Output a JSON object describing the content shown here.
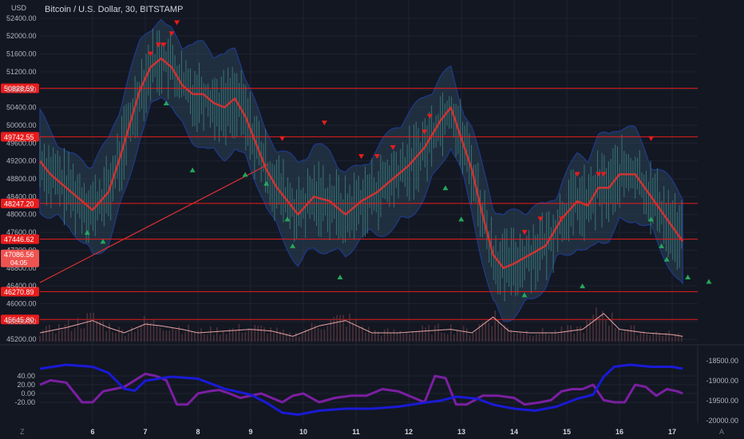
{
  "header": {
    "title": "Bitcoin / U.S. Dollar, 30, BITSTAMP",
    "unit": "USD"
  },
  "corner": {
    "left": "Z",
    "right": "A"
  },
  "colors": {
    "background": "#131722",
    "grid": "#1f2330",
    "candle_wick": "#3d8b86",
    "band_fill": "#2b4457",
    "band_edge": "#1e3a8c",
    "moving_average": "#cc3333",
    "level_line": "#e81c1c",
    "trend_line": "#e03131",
    "volume_line": "#e8a3a3",
    "buy_marker": "#26a65b",
    "sell_marker": "#e81c1c",
    "oscillator_purple": "#7b1fa2",
    "oscillator_blue": "#1a1ad6",
    "current_price_label": "#ef5350"
  },
  "chart_data": {
    "type": "line",
    "price_axis": {
      "ticks": [
        "52400.00",
        "52000.00",
        "51600.00",
        "51200.00",
        "50800.00",
        "50400.00",
        "50000.00",
        "49600.00",
        "49200.00",
        "48800.00",
        "48400.00",
        "48000.00",
        "47600.00",
        "47200.00",
        "46800.00",
        "46400.00",
        "46000.00",
        "45600.00",
        "45200.00"
      ]
    },
    "time_axis": {
      "ticks": [
        "6",
        "7",
        "8",
        "9",
        "10",
        "11",
        "12",
        "13",
        "14",
        "15",
        "16",
        "17"
      ]
    },
    "levels": [
      "50828.59",
      "49742.55",
      "48247.20",
      "47446.62",
      "46270.89",
      "45645.80"
    ],
    "current_price": {
      "value": "47086.56",
      "countdown": "04:05"
    },
    "price_series": [
      [
        5.0,
        49200
      ],
      [
        5.2,
        48900
      ],
      [
        5.5,
        48600
      ],
      [
        5.8,
        48300
      ],
      [
        6.0,
        48100
      ],
      [
        6.3,
        48500
      ],
      [
        6.5,
        49200
      ],
      [
        6.7,
        50000
      ],
      [
        6.9,
        50800
      ],
      [
        7.1,
        51300
      ],
      [
        7.3,
        51500
      ],
      [
        7.5,
        51300
      ],
      [
        7.7,
        50900
      ],
      [
        7.9,
        50700
      ],
      [
        8.1,
        50700
      ],
      [
        8.3,
        50500
      ],
      [
        8.5,
        50400
      ],
      [
        8.7,
        50600
      ],
      [
        8.9,
        50200
      ],
      [
        9.1,
        49600
      ],
      [
        9.3,
        49000
      ],
      [
        9.5,
        48600
      ],
      [
        9.7,
        48300
      ],
      [
        9.9,
        48000
      ],
      [
        10.2,
        48400
      ],
      [
        10.5,
        48300
      ],
      [
        10.8,
        48000
      ],
      [
        11.1,
        48300
      ],
      [
        11.4,
        48500
      ],
      [
        11.7,
        48800
      ],
      [
        12.0,
        49100
      ],
      [
        12.3,
        49500
      ],
      [
        12.6,
        50100
      ],
      [
        12.8,
        50400
      ],
      [
        13.0,
        49700
      ],
      [
        13.2,
        49000
      ],
      [
        13.4,
        48000
      ],
      [
        13.6,
        47100
      ],
      [
        13.8,
        46800
      ],
      [
        14.0,
        46900
      ],
      [
        14.3,
        47100
      ],
      [
        14.6,
        47300
      ],
      [
        14.9,
        47900
      ],
      [
        15.2,
        48300
      ],
      [
        15.4,
        48200
      ],
      [
        15.6,
        48600
      ],
      [
        15.8,
        48600
      ],
      [
        16.0,
        48900
      ],
      [
        16.3,
        48900
      ],
      [
        16.6,
        48400
      ],
      [
        16.9,
        47900
      ],
      [
        17.2,
        47400
      ]
    ],
    "volume_series": [
      [
        5.0,
        5
      ],
      [
        5.5,
        8
      ],
      [
        6.0,
        12
      ],
      [
        6.3,
        8
      ],
      [
        6.6,
        5
      ],
      [
        7.0,
        10
      ],
      [
        7.3,
        9
      ],
      [
        7.7,
        7
      ],
      [
        8.0,
        5
      ],
      [
        8.5,
        6
      ],
      [
        9.0,
        7
      ],
      [
        9.4,
        6
      ],
      [
        9.8,
        3
      ],
      [
        10.3,
        9
      ],
      [
        10.8,
        12
      ],
      [
        11.3,
        5
      ],
      [
        11.8,
        5
      ],
      [
        12.3,
        6
      ],
      [
        12.8,
        7
      ],
      [
        13.2,
        5
      ],
      [
        13.6,
        14
      ],
      [
        13.9,
        6
      ],
      [
        14.3,
        5
      ],
      [
        14.8,
        5
      ],
      [
        15.3,
        7
      ],
      [
        15.7,
        16
      ],
      [
        16.0,
        7
      ],
      [
        16.5,
        5
      ],
      [
        17.0,
        4
      ],
      [
        17.2,
        3
      ]
    ],
    "oscillator_axis": {
      "ticks": [
        "40.00",
        "20.00",
        "0.00",
        "-20.00"
      ]
    },
    "oscillator_right_axis": {
      "ticks": [
        "-18500.00",
        "-19000.00",
        "-19500.00",
        "-20000.00"
      ]
    },
    "oscillator_series": [
      {
        "values": [
          [
            5.0,
            20
          ],
          [
            5.2,
            30
          ],
          [
            5.5,
            25
          ],
          [
            5.8,
            -20
          ],
          [
            6.0,
            -20
          ],
          [
            6.2,
            5
          ],
          [
            6.4,
            10
          ],
          [
            6.6,
            15
          ],
          [
            6.8,
            30
          ],
          [
            7.0,
            45
          ],
          [
            7.2,
            40
          ],
          [
            7.4,
            30
          ],
          [
            7.6,
            -25
          ],
          [
            7.8,
            -25
          ],
          [
            8.0,
            0
          ],
          [
            8.2,
            5
          ],
          [
            8.4,
            8
          ],
          [
            8.6,
            0
          ],
          [
            8.8,
            -10
          ],
          [
            9.0,
            -5
          ],
          [
            9.2,
            0
          ],
          [
            9.4,
            -10
          ],
          [
            9.6,
            -20
          ],
          [
            9.8,
            -5
          ],
          [
            10.0,
            0
          ],
          [
            10.3,
            -20
          ],
          [
            10.6,
            -10
          ],
          [
            10.9,
            -5
          ],
          [
            11.2,
            -5
          ],
          [
            11.5,
            10
          ],
          [
            11.8,
            5
          ],
          [
            12.1,
            -10
          ],
          [
            12.3,
            -20
          ],
          [
            12.5,
            40
          ],
          [
            12.7,
            35
          ],
          [
            12.9,
            -25
          ],
          [
            13.1,
            -25
          ],
          [
            13.4,
            -5
          ],
          [
            13.7,
            -5
          ],
          [
            14.0,
            -10
          ],
          [
            14.2,
            -25
          ],
          [
            14.5,
            -20
          ],
          [
            14.7,
            -15
          ],
          [
            14.9,
            5
          ],
          [
            15.1,
            10
          ],
          [
            15.3,
            10
          ],
          [
            15.5,
            20
          ],
          [
            15.7,
            -15
          ],
          [
            15.9,
            -20
          ],
          [
            16.1,
            -20
          ],
          [
            16.3,
            20
          ],
          [
            16.5,
            15
          ],
          [
            16.7,
            -5
          ],
          [
            16.9,
            10
          ],
          [
            17.1,
            5
          ],
          [
            17.2,
            0
          ]
        ]
      },
      {
        "values": [
          [
            5.0,
            -18700
          ],
          [
            5.5,
            -18600
          ],
          [
            6.0,
            -18650
          ],
          [
            6.3,
            -18800
          ],
          [
            6.6,
            -19200
          ],
          [
            6.8,
            -19250
          ],
          [
            7.0,
            -19000
          ],
          [
            7.5,
            -18900
          ],
          [
            8.0,
            -18950
          ],
          [
            8.5,
            -19200
          ],
          [
            9.0,
            -19350
          ],
          [
            9.3,
            -19550
          ],
          [
            9.6,
            -19800
          ],
          [
            9.9,
            -19850
          ],
          [
            10.3,
            -19750
          ],
          [
            10.8,
            -19700
          ],
          [
            11.3,
            -19700
          ],
          [
            11.8,
            -19650
          ],
          [
            12.3,
            -19550
          ],
          [
            12.6,
            -19500
          ],
          [
            12.9,
            -19400
          ],
          [
            13.3,
            -19450
          ],
          [
            13.6,
            -19600
          ],
          [
            14.0,
            -19700
          ],
          [
            14.4,
            -19750
          ],
          [
            14.8,
            -19650
          ],
          [
            15.2,
            -19450
          ],
          [
            15.5,
            -19350
          ],
          [
            15.7,
            -18900
          ],
          [
            15.9,
            -18650
          ],
          [
            16.2,
            -18600
          ],
          [
            16.6,
            -18650
          ],
          [
            17.0,
            -18650
          ],
          [
            17.2,
            -18700
          ]
        ]
      }
    ]
  }
}
